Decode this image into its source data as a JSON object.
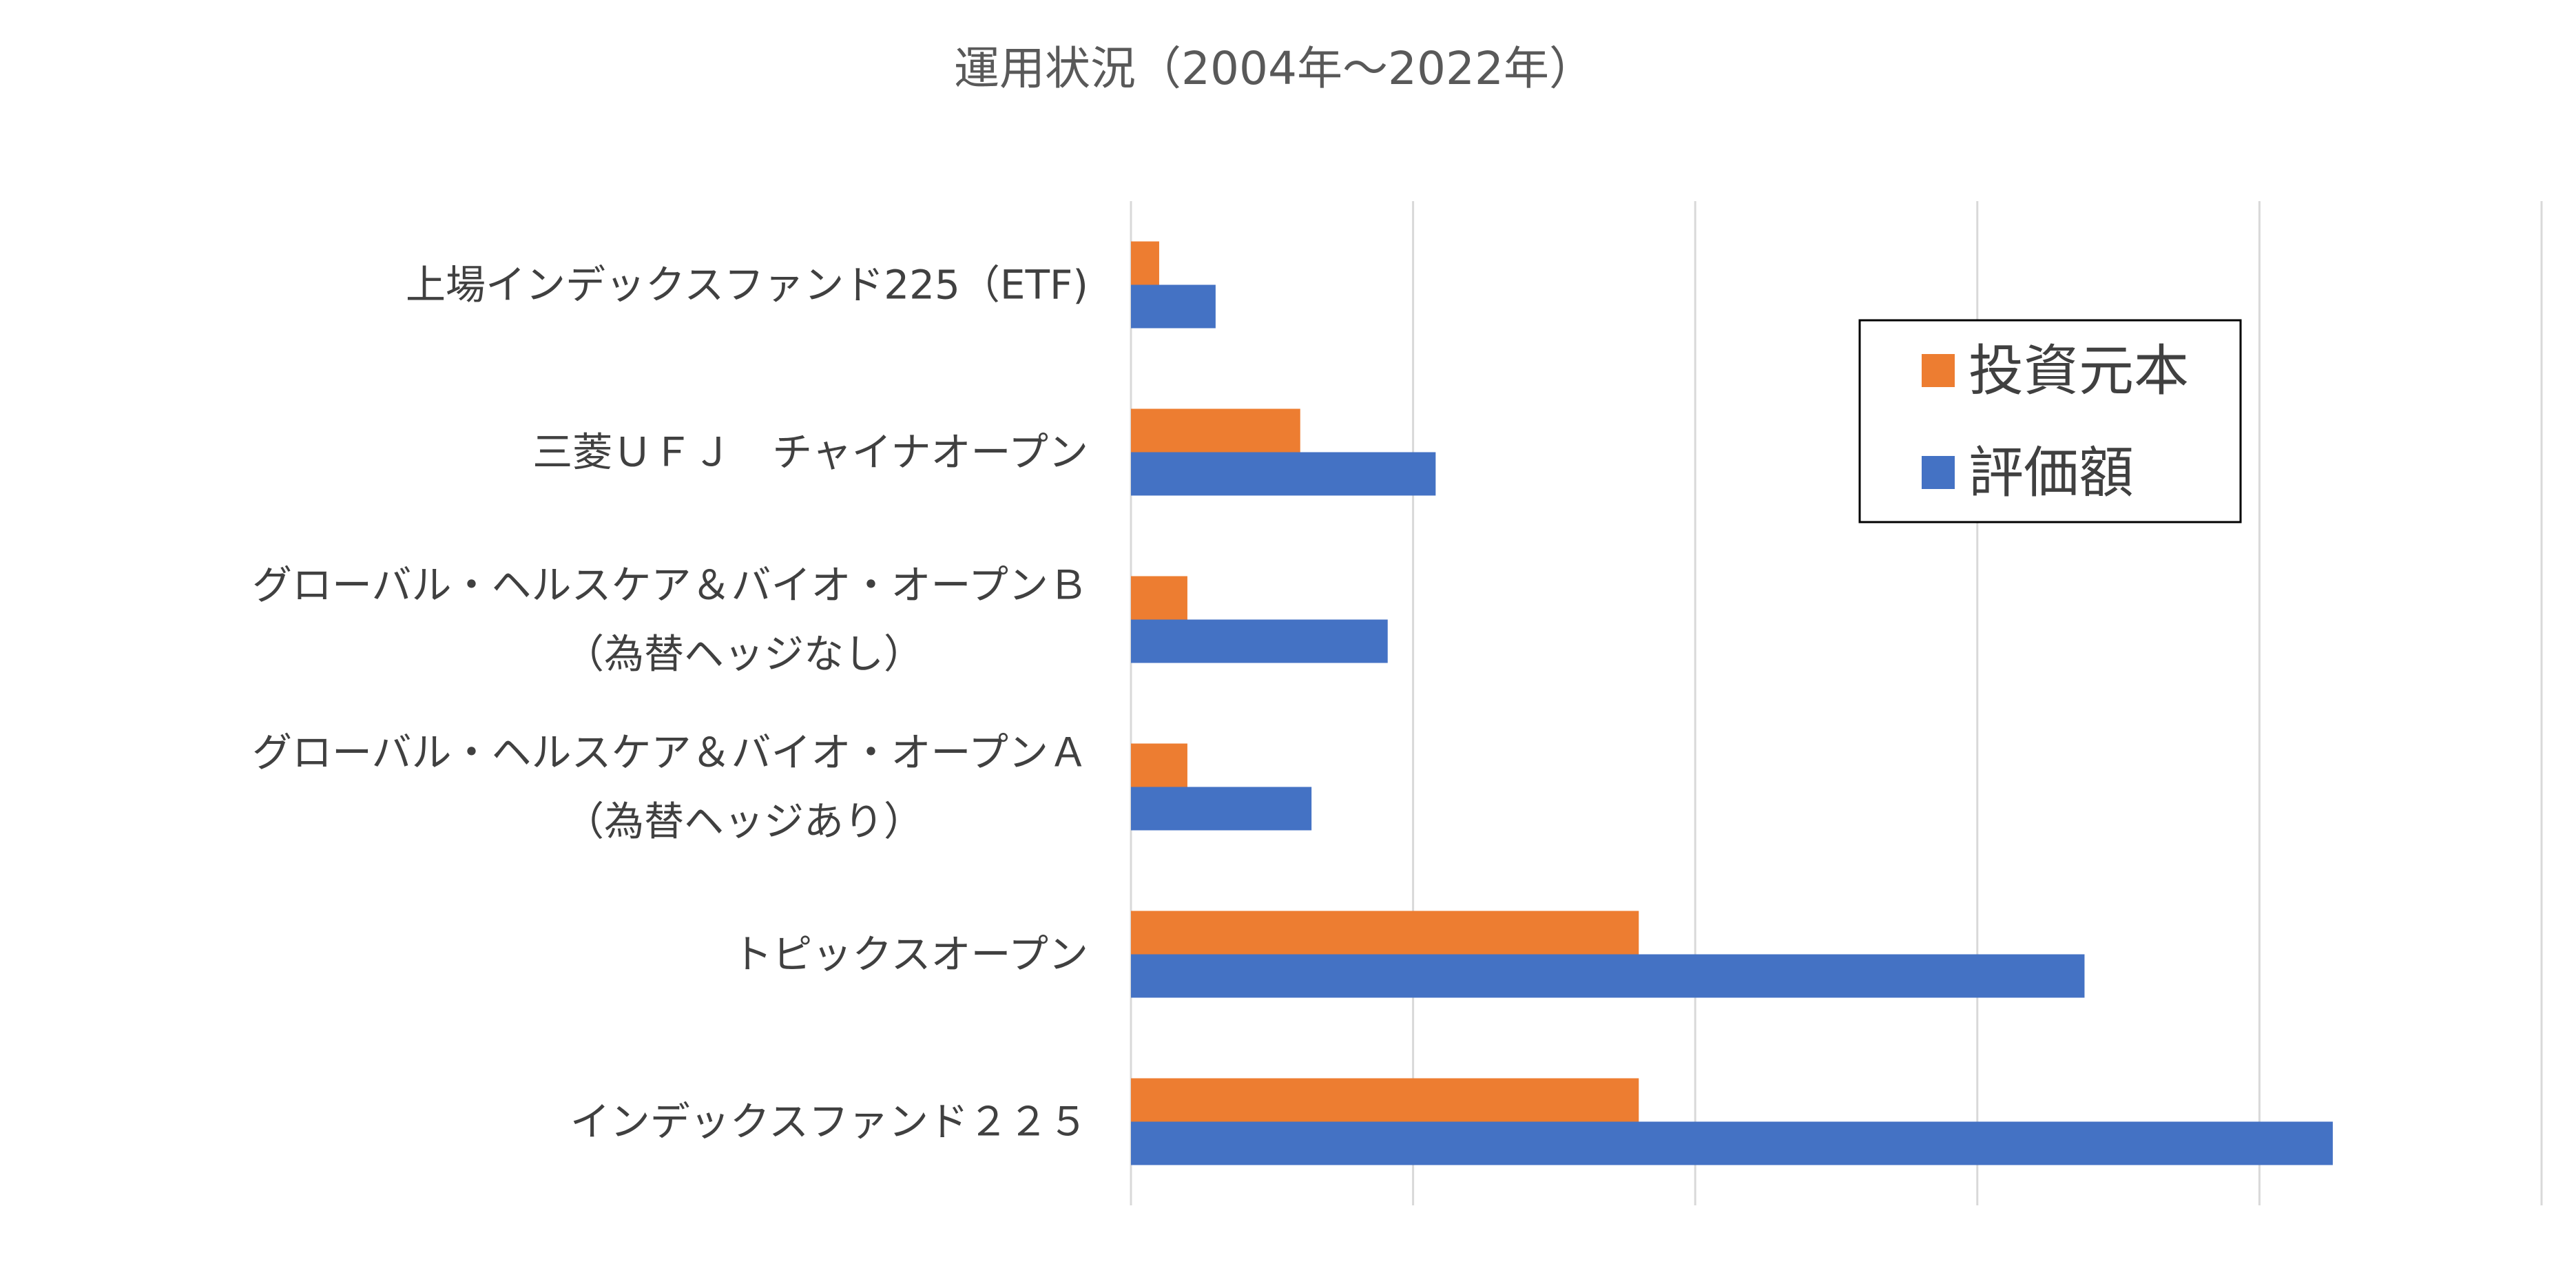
{
  "chart_data": {
    "type": "bar",
    "orientation": "horizontal",
    "title": "運用状況（2004年～2022年）",
    "categories": [
      [
        "上場インデックスファンド225（ETF)"
      ],
      [
        "三菱ＵＦＪ　チャイナオープン"
      ],
      [
        "グローバル・ヘルスケア＆バイオ・オープンＢ",
        "（為替ヘッジなし）"
      ],
      [
        "グローバル・ヘルスケア＆バイオ・オープンＡ",
        "（為替ヘッジあり）"
      ],
      [
        "トピックスオープン"
      ],
      [
        "インデックスファンド２２５"
      ]
    ],
    "series": [
      {
        "name": "投資元本",
        "color": "#ED7D31",
        "values": [
          0.5,
          3.0,
          1.0,
          1.0,
          9.0,
          9.0
        ]
      },
      {
        "name": "評価額",
        "color": "#4472C4",
        "values": [
          1.5,
          5.4,
          4.55,
          3.2,
          16.9,
          21.3
        ]
      }
    ],
    "xlim": [
      0,
      25
    ],
    "x_gridlines": [
      0,
      5,
      10,
      15,
      20,
      25
    ],
    "x_tick_labels_visible": false,
    "grid": true,
    "gridline_color": "#D9D9D9",
    "legend": {
      "position": "right",
      "border": true
    }
  }
}
